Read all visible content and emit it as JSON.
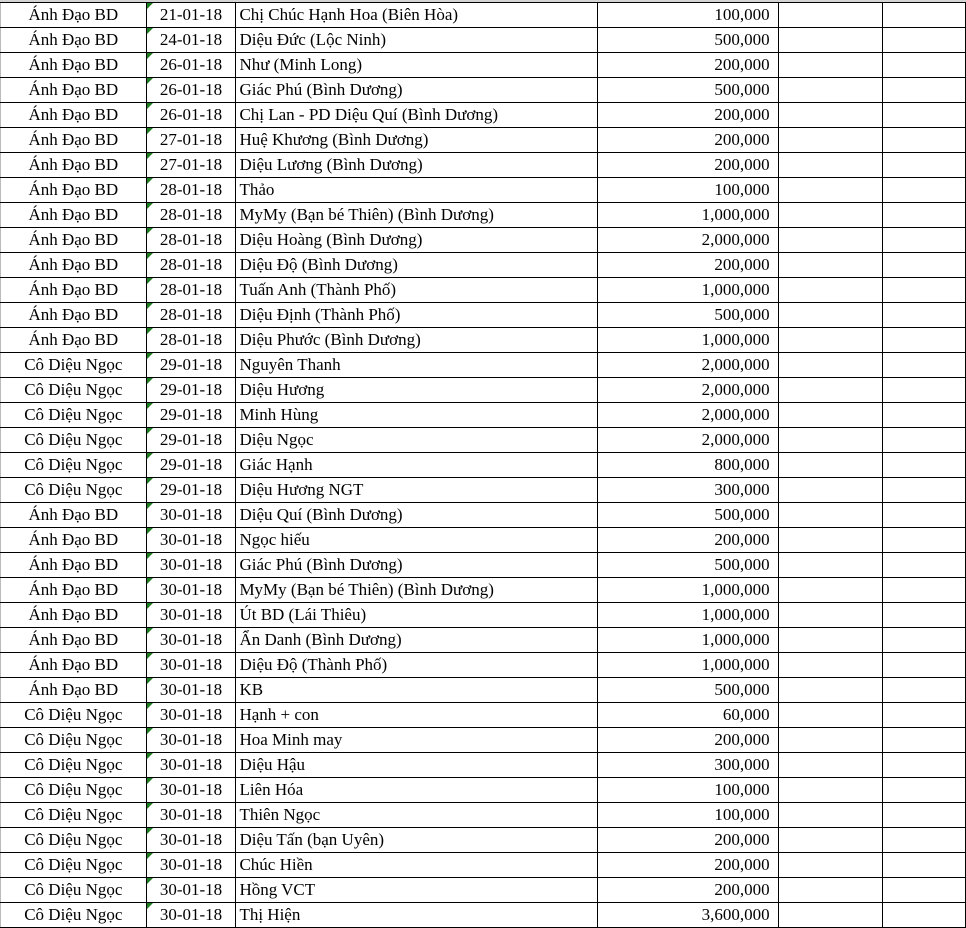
{
  "colors": {
    "grid": "#000000",
    "error_indicator": "#1e7d1e"
  },
  "rows": [
    {
      "group": "Ánh Đạo BD",
      "date": "21-01-18",
      "name": "Chị Chúc Hạnh Hoa (Biên Hòa)",
      "amount": "100,000"
    },
    {
      "group": "Ánh Đạo BD",
      "date": "24-01-18",
      "name": "Diệu Đức (Lộc Ninh)",
      "amount": "500,000"
    },
    {
      "group": "Ánh Đạo BD",
      "date": "26-01-18",
      "name": "Như (Minh Long)",
      "amount": "200,000"
    },
    {
      "group": "Ánh Đạo BD",
      "date": "26-01-18",
      "name": "Giác Phú (Bình Dương)",
      "amount": "500,000"
    },
    {
      "group": "Ánh Đạo BD",
      "date": "26-01-18",
      "name": "Chị Lan - PD Diệu Quí (Bình Dương)",
      "amount": "200,000"
    },
    {
      "group": "Ánh Đạo BD",
      "date": "27-01-18",
      "name": "Huệ Khương (Bình Dương)",
      "amount": "200,000"
    },
    {
      "group": "Ánh Đạo BD",
      "date": "27-01-18",
      "name": "Diệu Lương (Bình Dương)",
      "amount": "200,000"
    },
    {
      "group": "Ánh Đạo BD",
      "date": "28-01-18",
      "name": "Thảo",
      "amount": "100,000"
    },
    {
      "group": "Ánh Đạo BD",
      "date": "28-01-18",
      "name": "MyMy (Bạn bé Thiên) (Bình Dương)",
      "amount": "1,000,000"
    },
    {
      "group": "Ánh Đạo BD",
      "date": "28-01-18",
      "name": "Diệu Hoàng (Bình Dương)",
      "amount": "2,000,000"
    },
    {
      "group": "Ánh Đạo BD",
      "date": "28-01-18",
      "name": "Diệu Độ (Bình Dương)",
      "amount": "200,000"
    },
    {
      "group": "Ánh Đạo BD",
      "date": "28-01-18",
      "name": "Tuấn Anh (Thành Phố)",
      "amount": "1,000,000"
    },
    {
      "group": "Ánh Đạo BD",
      "date": "28-01-18",
      "name": "Diệu Định (Thành Phố)",
      "amount": "500,000"
    },
    {
      "group": "Ánh Đạo BD",
      "date": "28-01-18",
      "name": "Diệu Phước (Bình Dương)",
      "amount": "1,000,000"
    },
    {
      "group": "Cô Diệu Ngọc",
      "date": "29-01-18",
      "name": "Nguyên Thanh",
      "amount": "2,000,000"
    },
    {
      "group": "Cô Diệu Ngọc",
      "date": "29-01-18",
      "name": "Diệu Hương",
      "amount": "2,000,000"
    },
    {
      "group": "Cô Diệu Ngọc",
      "date": "29-01-18",
      "name": "Minh Hùng",
      "amount": "2,000,000"
    },
    {
      "group": "Cô Diệu Ngọc",
      "date": "29-01-18",
      "name": "Diệu Ngọc",
      "amount": "2,000,000"
    },
    {
      "group": "Cô Diệu Ngọc",
      "date": "29-01-18",
      "name": "Giác Hạnh",
      "amount": "800,000"
    },
    {
      "group": "Cô Diệu Ngọc",
      "date": "29-01-18",
      "name": "Diệu Hương NGT",
      "amount": "300,000"
    },
    {
      "group": "Ánh Đạo BD",
      "date": "30-01-18",
      "name": "Diệu Quí (Bình Dương)",
      "amount": "500,000"
    },
    {
      "group": "Ánh Đạo BD",
      "date": "30-01-18",
      "name": "Ngọc hiếu",
      "amount": "200,000"
    },
    {
      "group": "Ánh Đạo BD",
      "date": "30-01-18",
      "name": "Giác Phú (Bình Dương)",
      "amount": "500,000"
    },
    {
      "group": "Ánh Đạo BD",
      "date": "30-01-18",
      "name": "MyMy (Bạn bé Thiên) (Bình Dương)",
      "amount": "1,000,000"
    },
    {
      "group": "Ánh Đạo BD",
      "date": "30-01-18",
      "name": "Út BD (Lái Thiêu)",
      "amount": "1,000,000"
    },
    {
      "group": "Ánh Đạo BD",
      "date": "30-01-18",
      "name": "Ẩn Danh (Bình Dương)",
      "amount": "1,000,000"
    },
    {
      "group": "Ánh Đạo BD",
      "date": "30-01-18",
      "name": "Diệu Độ (Thành Phố)",
      "amount": "1,000,000"
    },
    {
      "group": "Ánh Đạo BD",
      "date": "30-01-18",
      "name": "KB",
      "amount": "500,000"
    },
    {
      "group": "Cô Diệu Ngọc",
      "date": "30-01-18",
      "name": "Hạnh + con",
      "amount": "60,000"
    },
    {
      "group": "Cô Diệu Ngọc",
      "date": "30-01-18",
      "name": "Hoa Minh may",
      "amount": "200,000"
    },
    {
      "group": "Cô Diệu Ngọc",
      "date": "30-01-18",
      "name": "Diệu Hậu",
      "amount": "300,000"
    },
    {
      "group": "Cô Diệu Ngọc",
      "date": "30-01-18",
      "name": "Liên Hóa",
      "amount": "100,000"
    },
    {
      "group": "Cô Diệu Ngọc",
      "date": "30-01-18",
      "name": "Thiên Ngọc",
      "amount": "100,000"
    },
    {
      "group": "Cô Diệu Ngọc",
      "date": "30-01-18",
      "name": "Diệu Tấn (bạn Uyên)",
      "amount": "200,000"
    },
    {
      "group": "Cô Diệu Ngọc",
      "date": "30-01-18",
      "name": "Chúc Hiền",
      "amount": "200,000"
    },
    {
      "group": "Cô Diệu Ngọc",
      "date": "30-01-18",
      "name": "Hồng VCT",
      "amount": "200,000"
    },
    {
      "group": "Cô Diệu Ngọc",
      "date": "30-01-18",
      "name": "Thị Hiện",
      "amount": "3,600,000"
    }
  ]
}
